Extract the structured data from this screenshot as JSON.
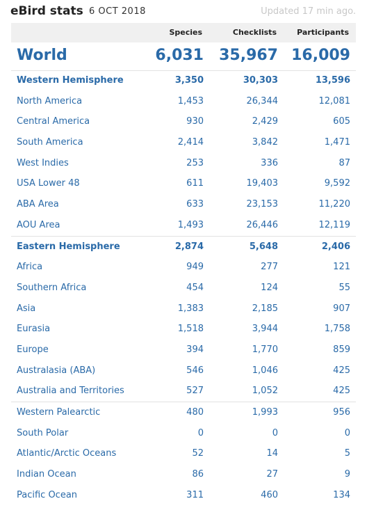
{
  "header": {
    "title": "eBird stats",
    "date": "6 OCT 2018",
    "updated": "Updated 17 min ago."
  },
  "columns": {
    "species": "Species",
    "checklists": "Checklists",
    "participants": "Participants"
  },
  "world": {
    "name": "World",
    "species": "6,031",
    "checklists": "35,967",
    "participants": "16,009"
  },
  "rows": [
    {
      "name": "Western Hemisphere",
      "species": "3,350",
      "checklists": "30,303",
      "participants": "13,596"
    },
    {
      "name": "North America",
      "species": "1,453",
      "checklists": "26,344",
      "participants": "12,081"
    },
    {
      "name": "Central America",
      "species": "930",
      "checklists": "2,429",
      "participants": "605"
    },
    {
      "name": "South America",
      "species": "2,414",
      "checklists": "3,842",
      "participants": "1,471"
    },
    {
      "name": "West Indies",
      "species": "253",
      "checklists": "336",
      "participants": "87"
    },
    {
      "name": "USA Lower 48",
      "species": "611",
      "checklists": "19,403",
      "participants": "9,592"
    },
    {
      "name": "ABA Area",
      "species": "633",
      "checklists": "23,153",
      "participants": "11,220"
    },
    {
      "name": "AOU Area",
      "species": "1,493",
      "checklists": "26,446",
      "participants": "12,119"
    },
    {
      "name": "Eastern Hemisphere",
      "species": "2,874",
      "checklists": "5,648",
      "participants": "2,406"
    },
    {
      "name": "Africa",
      "species": "949",
      "checklists": "277",
      "participants": "121"
    },
    {
      "name": "Southern Africa",
      "species": "454",
      "checklists": "124",
      "participants": "55"
    },
    {
      "name": "Asia",
      "species": "1,383",
      "checklists": "2,185",
      "participants": "907"
    },
    {
      "name": "Eurasia",
      "species": "1,518",
      "checklists": "3,944",
      "participants": "1,758"
    },
    {
      "name": "Europe",
      "species": "394",
      "checklists": "1,770",
      "participants": "859"
    },
    {
      "name": "Australasia (ABA)",
      "species": "546",
      "checklists": "1,046",
      "participants": "425"
    },
    {
      "name": "Australia and Territories",
      "species": "527",
      "checklists": "1,052",
      "participants": "425"
    },
    {
      "name": "Western Palearctic",
      "species": "480",
      "checklists": "1,993",
      "participants": "956"
    },
    {
      "name": "South Polar",
      "species": "0",
      "checklists": "0",
      "participants": "0"
    },
    {
      "name": "Atlantic/Arctic Oceans",
      "species": "52",
      "checklists": "14",
      "participants": "5"
    },
    {
      "name": "Indian Ocean",
      "species": "86",
      "checklists": "27",
      "participants": "9"
    },
    {
      "name": "Pacific Ocean",
      "species": "311",
      "checklists": "460",
      "participants": "134"
    }
  ]
}
